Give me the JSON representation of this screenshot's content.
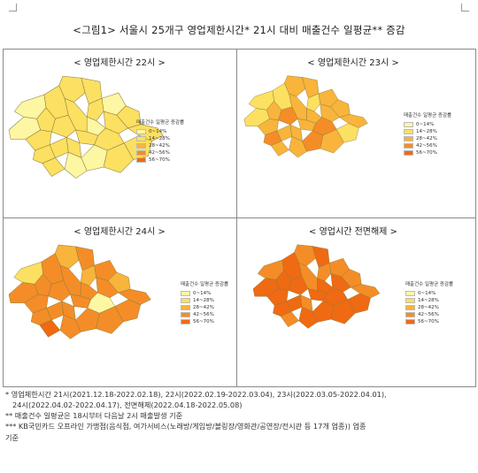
{
  "title": "<그림1> 서울시 25개구 영업제한시간* 21시 대비 매출건수 일평균** 증감",
  "legend": {
    "title": "매출건수 일평균 증감률",
    "items": [
      {
        "label": "0~14%",
        "color": "#fdf6a3"
      },
      {
        "label": "14~28%",
        "color": "#fbe062"
      },
      {
        "label": "28~42%",
        "color": "#f8b43b"
      },
      {
        "label": "42~56%",
        "color": "#f48d27"
      },
      {
        "label": "56~70%",
        "color": "#ef6a12"
      }
    ]
  },
  "panels": [
    {
      "title": "< 영업제한시간 22시 >"
    },
    {
      "title": "< 영업제한시간 23시 >"
    },
    {
      "title": "< 영업제한시간 24시 >"
    },
    {
      "title": "< 영업시간 전면해제 >"
    }
  ],
  "maps": [
    {
      "classes": [
        1,
        1,
        0,
        1,
        1,
        1,
        0,
        1,
        1,
        0,
        1,
        1,
        1,
        0,
        1,
        1,
        1,
        1,
        1,
        0,
        0,
        1,
        1,
        1,
        1
      ]
    },
    {
      "classes": [
        2,
        2,
        2,
        1,
        2,
        2,
        2,
        2,
        1,
        1,
        2,
        3,
        2,
        1,
        2,
        3,
        2,
        2,
        2,
        2,
        3,
        2,
        3,
        1,
        2
      ]
    },
    {
      "classes": [
        2,
        3,
        3,
        2,
        2,
        3,
        3,
        3,
        3,
        1,
        3,
        3,
        3,
        3,
        3,
        3,
        3,
        3,
        4,
        3,
        3,
        3,
        0,
        3,
        3
      ]
    },
    {
      "classes": [
        3,
        4,
        3,
        3,
        3,
        4,
        4,
        3,
        4,
        3,
        4,
        4,
        4,
        4,
        4,
        4,
        4,
        3,
        3,
        4,
        4,
        4,
        4,
        4,
        3
      ]
    }
  ],
  "notes": [
    "* 영업제한시간 21시(2021.12.18-2022.02.18), 22시(2022.02.19-2022.03.04), 23시(2022.03.05-2022.04.01),",
    "24시(2022.04.02-2022.04.17), 전면해제(2022.04.18-2022.05.08)",
    "** 매출건수 일평균은 18시부터 다음날 2시 매출발생 기준",
    "*** KB국민카드 오프라인 가맹점(음식점, 여가서비스(노래방/게임방/볼링장/영화관/공연장/전시관 등 17개 업종)) 업종",
    "기준"
  ]
}
